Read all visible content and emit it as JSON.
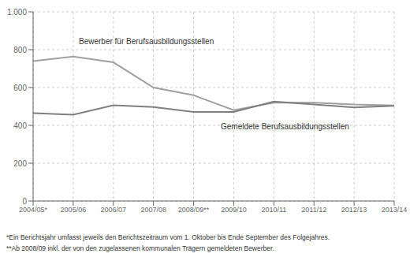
{
  "chart_data": {
    "type": "line",
    "categories": [
      "2004/05*",
      "2005/06",
      "2006/07",
      "2007/08",
      "2008/09**",
      "2009/10",
      "2010/11",
      "2011/12",
      "2012/13",
      "2013/14"
    ],
    "series": [
      {
        "name": "Bewerber für Berufsausbildungsstellen",
        "color": "#a0a0a0",
        "values": [
          740,
          763,
          733,
          600,
          559,
          480,
          520,
          520,
          510,
          505
        ]
      },
      {
        "name": "Gemeldete Berufsausbildungsstellen",
        "color": "#808080",
        "values": [
          465,
          456,
          506,
          497,
          471,
          471,
          526,
          510,
          495,
          503
        ]
      }
    ],
    "ylim": [
      0,
      1000
    ],
    "yticks": [
      0,
      200,
      400,
      600,
      800,
      {
        "value": 1000,
        "label": "1.000"
      }
    ],
    "grid": true,
    "footnotes": [
      "*Ein Berichtsjahr umfasst jeweils den Berichtszeitraum vom 1. Oktober bis Ende September des Folgejahres.",
      "**Ab 2008/09 inkl. der von den zugelassenen kommunalen Trägern gemeldeten Bewerber."
    ]
  }
}
